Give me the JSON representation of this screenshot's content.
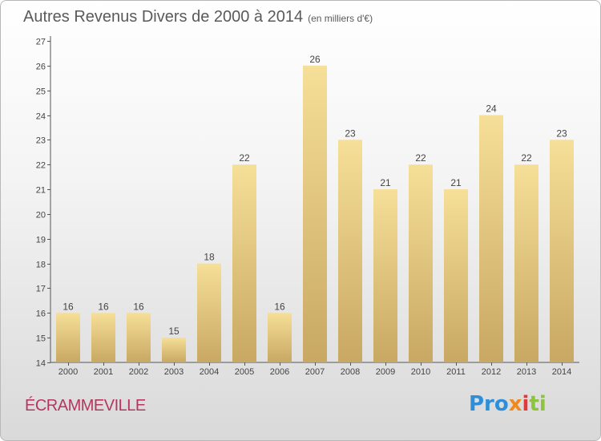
{
  "header": {
    "title": "Autres Revenus Divers de 2000 à 2014",
    "subtitle": "(en milliers d'€)"
  },
  "footer": {
    "place": "ÉCRAMMEVILLE",
    "logo_parts": [
      "Pro",
      "x",
      "i",
      "ti"
    ]
  },
  "colors": {
    "bar_light": "#f6df98",
    "bar_dark": "#c8a862",
    "axis": "#555555",
    "title": "#5a5a5a",
    "place": "#b5375f"
  },
  "chart_data": {
    "type": "bar",
    "title": "Autres Revenus Divers de 2000 à 2014",
    "subtitle": "(en milliers d'€)",
    "categories": [
      "2000",
      "2001",
      "2002",
      "2003",
      "2004",
      "2005",
      "2006",
      "2007",
      "2008",
      "2009",
      "2010",
      "2011",
      "2012",
      "2013",
      "2014"
    ],
    "values": [
      16,
      16,
      16,
      15,
      18,
      22,
      16,
      26,
      23,
      21,
      22,
      21,
      24,
      22,
      23
    ],
    "ylim": [
      14,
      27
    ],
    "yticks": [
      14,
      15,
      16,
      17,
      18,
      19,
      20,
      21,
      22,
      23,
      24,
      25,
      26,
      27
    ],
    "grid": false,
    "data_labels": true
  }
}
